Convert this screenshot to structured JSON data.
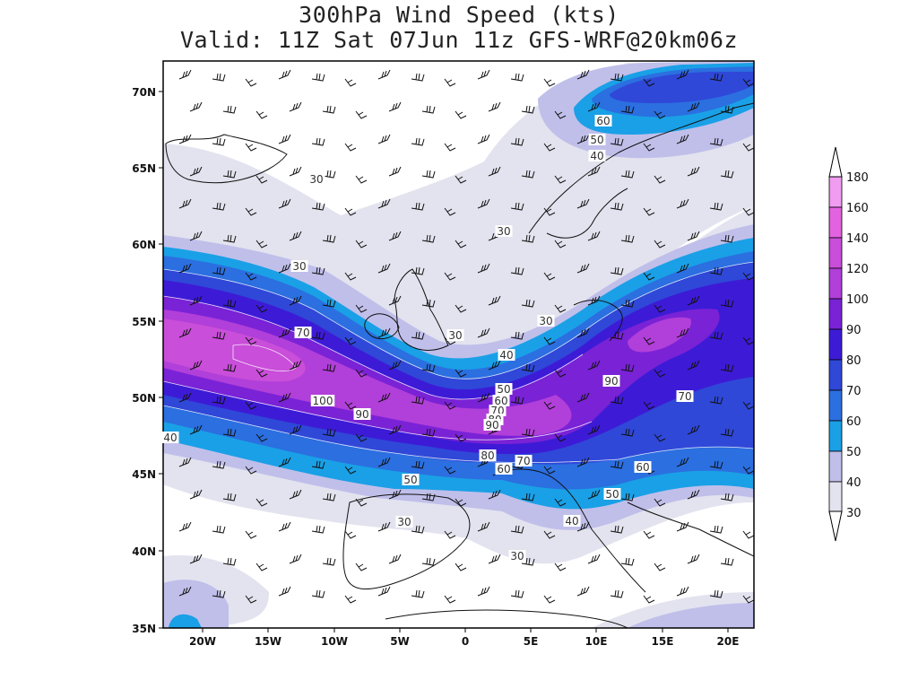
{
  "title": {
    "line1": "300hPa Wind Speed (kts)",
    "line2": "Valid: 11Z Sat 07Jun 11z GFS-WRF@20km06z"
  },
  "axes": {
    "y_labels": [
      "70N",
      "65N",
      "60N",
      "55N",
      "50N",
      "45N",
      "40N",
      "35N"
    ],
    "x_labels": [
      "20W",
      "15W",
      "10W",
      "5W",
      "0",
      "5E",
      "10E",
      "15E",
      "20E"
    ]
  },
  "contour_labels": [
    "30",
    "30",
    "30",
    "30",
    "30",
    "30",
    "30",
    "40",
    "40",
    "40",
    "40",
    "50",
    "50",
    "50",
    "50",
    "60",
    "60",
    "60",
    "60",
    "70",
    "70",
    "70",
    "70",
    "80",
    "80",
    "90",
    "90",
    "90",
    "100"
  ],
  "legend": {
    "levels": [
      "180",
      "160",
      "140",
      "120",
      "100",
      "90",
      "80",
      "70",
      "60",
      "50",
      "40",
      "30"
    ],
    "colors": {
      "30": "#e3e3ef",
      "40": "#c0bfea",
      "50": "#1aa0e6",
      "60": "#2b6fe0",
      "70": "#2f48d8",
      "80": "#3d1bd6",
      "90": "#7a22d6",
      "100": "#b13fd9",
      "120": "#c94ed9",
      "140": "#e262e0",
      "160": "#f09cf0",
      "180": "#fad8fa"
    }
  }
}
